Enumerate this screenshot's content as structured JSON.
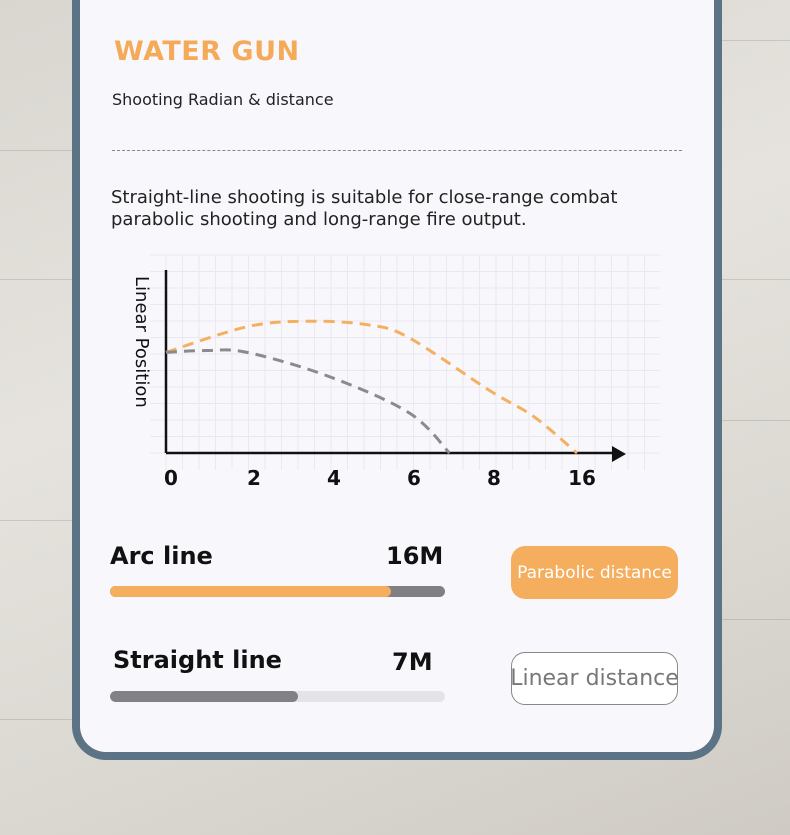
{
  "header": {
    "title": "WATER GUN",
    "subtitle": "Shooting Radian & distance"
  },
  "description": "Straight-line shooting is suitable for close-range combat parabolic shooting and long-range fire output.",
  "chart_data": {
    "type": "line",
    "ylabel": "Linear Position",
    "xlabel": "",
    "x_tick_labels": [
      "0",
      "2",
      "4",
      "6",
      "8",
      "16"
    ],
    "ylim": [
      0,
      10
    ],
    "grid": true,
    "series": [
      {
        "color": "#f4b060",
        "style": "dashed",
        "points": [
          [
            0,
            5.5
          ],
          [
            2,
            6.9
          ],
          [
            3.5,
            7.2
          ],
          [
            5,
            7.0
          ],
          [
            6,
            6.3
          ],
          [
            8,
            3.4
          ],
          [
            12,
            2.0
          ],
          [
            16,
            0
          ]
        ]
      },
      {
        "color": "#8a8a90",
        "style": "dashed",
        "points": [
          [
            0,
            5.5
          ],
          [
            1,
            5.6
          ],
          [
            2,
            5.5
          ],
          [
            4,
            4.2
          ],
          [
            6,
            2.2
          ],
          [
            7,
            0
          ]
        ]
      }
    ]
  },
  "stats": [
    {
      "label": "Arc line",
      "value": "16M",
      "progress": 0.84,
      "fill": "#f4ae5e",
      "track": "#7f7f84"
    },
    {
      "label": "Straight line",
      "value": "7M",
      "progress": 0.56,
      "fill": "#818186",
      "track": "#e4e4e8"
    }
  ],
  "buttons": {
    "parabolic": "Parabolic distance",
    "linear": "Linear distance"
  },
  "colors": {
    "accent": "#f4aa58",
    "frame": "#5b7384"
  }
}
